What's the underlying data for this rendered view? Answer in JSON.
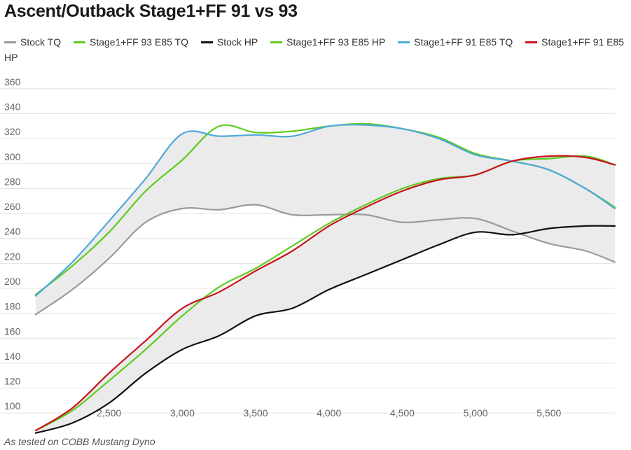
{
  "title": "Ascent/Outback Stage1+FF 91 vs 93",
  "footer": "As tested on COBB Mustang Dyno",
  "chart_data": {
    "type": "line",
    "title": "Ascent/Outback Stage1+FF 91 vs 93",
    "xlabel": "",
    "ylabel": "",
    "xlim": [
      2000,
      5950
    ],
    "ylim": [
      90,
      365
    ],
    "x_ticks": [
      2500,
      3000,
      3500,
      4000,
      4500,
      5000,
      5500
    ],
    "x_tick_labels": [
      "2,500",
      "3,000",
      "3,500",
      "4,000",
      "4,500",
      "5,000",
      "5,500"
    ],
    "y_ticks": [
      100,
      120,
      140,
      160,
      180,
      200,
      220,
      240,
      260,
      280,
      300,
      320,
      340,
      360
    ],
    "grid": "horizontal",
    "legend_position": "top",
    "shaded_bands": [
      {
        "between": [
          "Stock TQ",
          "Stage1+FF 91 E85 TQ"
        ],
        "color": "#ebebeb"
      },
      {
        "between": [
          "Stock HP",
          "Stage1+FF 91 E85 HP"
        ],
        "color": "#ebebeb"
      }
    ],
    "x": [
      2000,
      2250,
      2500,
      2750,
      3000,
      3250,
      3500,
      3750,
      4000,
      4250,
      4500,
      4750,
      5000,
      5250,
      5500,
      5750,
      5950
    ],
    "series": [
      {
        "name": "Stock TQ",
        "color": "#9a9a9a",
        "values": [
          179,
          199,
          224,
          253,
          264,
          263,
          267,
          259,
          259,
          259,
          253,
          255,
          256,
          246,
          236,
          230,
          221
        ]
      },
      {
        "name": "Stage1+FF 93 E85 TQ",
        "color": "#5ccc1e",
        "values": [
          195,
          218,
          245,
          278,
          303,
          330,
          325,
          326,
          330,
          332,
          328,
          321,
          308,
          302,
          295,
          280,
          265
        ]
      },
      {
        "name": "Stock HP",
        "color": "#111111",
        "values": [
          84,
          92,
          108,
          132,
          151,
          162,
          178,
          184,
          199,
          211,
          223,
          235,
          245,
          243,
          248,
          250,
          250
        ]
      },
      {
        "name": "Stage1+FF 93 E85 HP",
        "color": "#5ccc1e",
        "values": [
          86,
          102,
          126,
          151,
          178,
          201,
          216,
          234,
          252,
          267,
          280,
          288,
          291,
          302,
          304,
          306,
          299
        ]
      },
      {
        "name": "Stage1+FF 91 E85 TQ",
        "color": "#4ea9d9",
        "values": [
          194,
          221,
          254,
          288,
          324,
          322,
          323,
          322,
          330,
          331,
          328,
          320,
          307,
          302,
          295,
          280,
          264
        ]
      },
      {
        "name": "Stage1+FF 91 E85 HP",
        "color": "#c8141c",
        "values": [
          86,
          104,
          132,
          158,
          184,
          197,
          214,
          230,
          250,
          265,
          278,
          287,
          291,
          302,
          306,
          305,
          299
        ]
      }
    ]
  }
}
